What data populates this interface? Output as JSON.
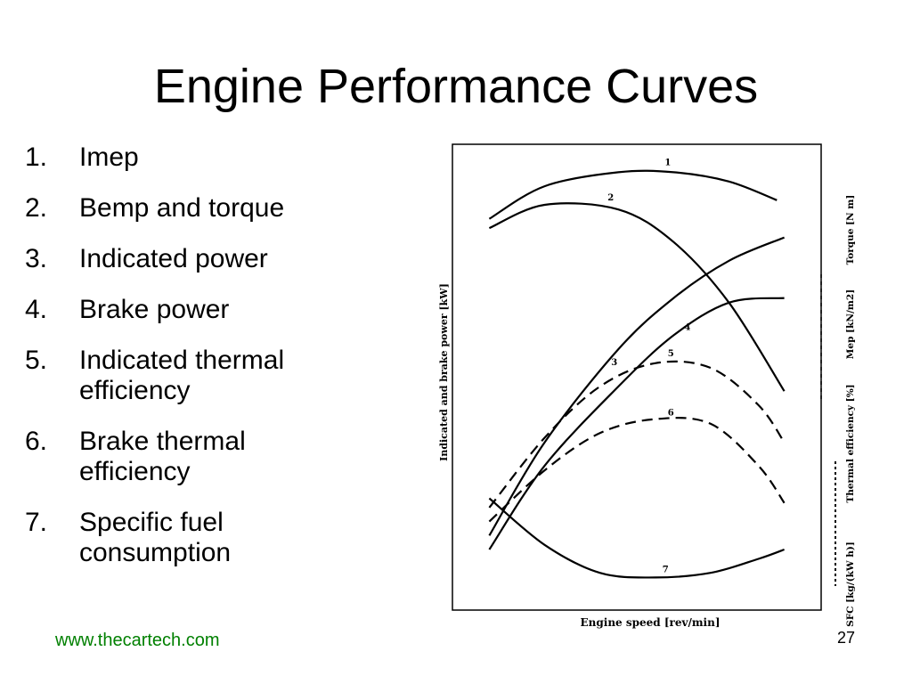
{
  "slide": {
    "title": "Engine Performance Curves",
    "footer_url": "www.thecartech.com",
    "page_number": "27",
    "url_color": "#008000"
  },
  "list": {
    "items": [
      {
        "number": "1.",
        "label": "Imep"
      },
      {
        "number": "2.",
        "label": "Bemp and torque"
      },
      {
        "number": "3.",
        "label": "Indicated power"
      },
      {
        "number": "4.",
        "label": "Brake power"
      },
      {
        "number": "5.",
        "label": "Indicated thermal efficiency"
      },
      {
        "number": "6.",
        "label": "Brake thermal efficiency"
      },
      {
        "number": "7.",
        "label": "Specific fuel consumption"
      }
    ]
  },
  "chart_data": {
    "type": "line",
    "title": "",
    "xlabel": "Engine speed [rev/min]",
    "ylabel_left": "Indicated and brake power [kW]",
    "ylabel_right": [
      "SFC [kg/(kW h)]",
      "Thermal efficiency [%]",
      "Mep [kN/m2]",
      "Torque [N m]"
    ],
    "xlim": [
      0,
      100
    ],
    "ylim": [
      0,
      100
    ],
    "grid": false,
    "series": [
      {
        "name": "1",
        "style": "solid",
        "x": [
          10,
          25,
          45,
          60,
          75,
          88
        ],
        "y": [
          84,
          91,
          94,
          94,
          92,
          88
        ]
      },
      {
        "name": "2",
        "style": "solid",
        "x": [
          10,
          25,
          45,
          60,
          75,
          90
        ],
        "y": [
          82,
          87,
          86,
          79,
          66,
          47
        ]
      },
      {
        "name": "3",
        "style": "solid",
        "x": [
          10,
          25,
          45,
          60,
          75,
          90
        ],
        "y": [
          16,
          36,
          56,
          67,
          75,
          80
        ]
      },
      {
        "name": "4",
        "style": "solid",
        "x": [
          10,
          25,
          45,
          60,
          75,
          90
        ],
        "y": [
          13,
          31,
          48,
          59,
          66,
          67
        ]
      },
      {
        "name": "5",
        "style": "dashed",
        "x": [
          10,
          25,
          40,
          55,
          70,
          83,
          90
        ],
        "y": [
          22,
          37,
          48,
          53,
          52,
          44,
          36
        ]
      },
      {
        "name": "6",
        "style": "dashed",
        "x": [
          10,
          25,
          40,
          55,
          70,
          83,
          90
        ],
        "y": [
          19,
          30,
          38,
          41,
          40,
          31,
          23
        ]
      },
      {
        "name": "7",
        "style": "solid",
        "x": [
          10,
          25,
          40,
          55,
          70,
          83,
          90
        ],
        "y": [
          24,
          14,
          8,
          7,
          8,
          11,
          13
        ]
      }
    ],
    "curve_labels": [
      "1",
      "2",
      "3",
      "4",
      "5",
      "6",
      "7"
    ]
  }
}
